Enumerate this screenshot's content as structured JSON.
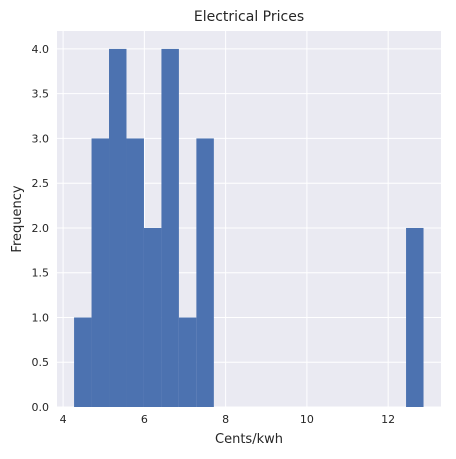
{
  "chart_data": {
    "type": "bar",
    "title": "Electrical Prices",
    "xlabel": "Cents/kwh",
    "ylabel": "Frequency",
    "xlim": [
      3.85,
      13.3
    ],
    "ylim": [
      0,
      4.2
    ],
    "grid": true,
    "xticks": [
      4,
      6,
      8,
      10,
      12
    ],
    "yticks": [
      0.0,
      0.5,
      1.0,
      1.5,
      2.0,
      2.5,
      3.0,
      3.5,
      4.0
    ],
    "xtick_labels": [
      "4",
      "6",
      "8",
      "10",
      "12"
    ],
    "ytick_labels": [
      "0.0",
      "0.5",
      "1.0",
      "1.5",
      "2.0",
      "2.5",
      "3.0",
      "3.5",
      "4.0"
    ],
    "bin_edges": [
      4.27,
      4.7,
      5.13,
      5.56,
      5.99,
      6.42,
      6.85,
      7.28,
      7.71,
      8.14,
      8.57,
      9.0,
      9.43,
      9.86,
      10.29,
      10.72,
      11.15,
      11.58,
      12.01,
      12.44,
      12.87
    ],
    "values": [
      1,
      3,
      4,
      3,
      2,
      4,
      1,
      3,
      0,
      0,
      0,
      0,
      0,
      0,
      0,
      0,
      0,
      0,
      0,
      2
    ],
    "bar_color": "#4c72b0",
    "background_color": "#eaeaf2",
    "grid_color": "#ffffff"
  }
}
